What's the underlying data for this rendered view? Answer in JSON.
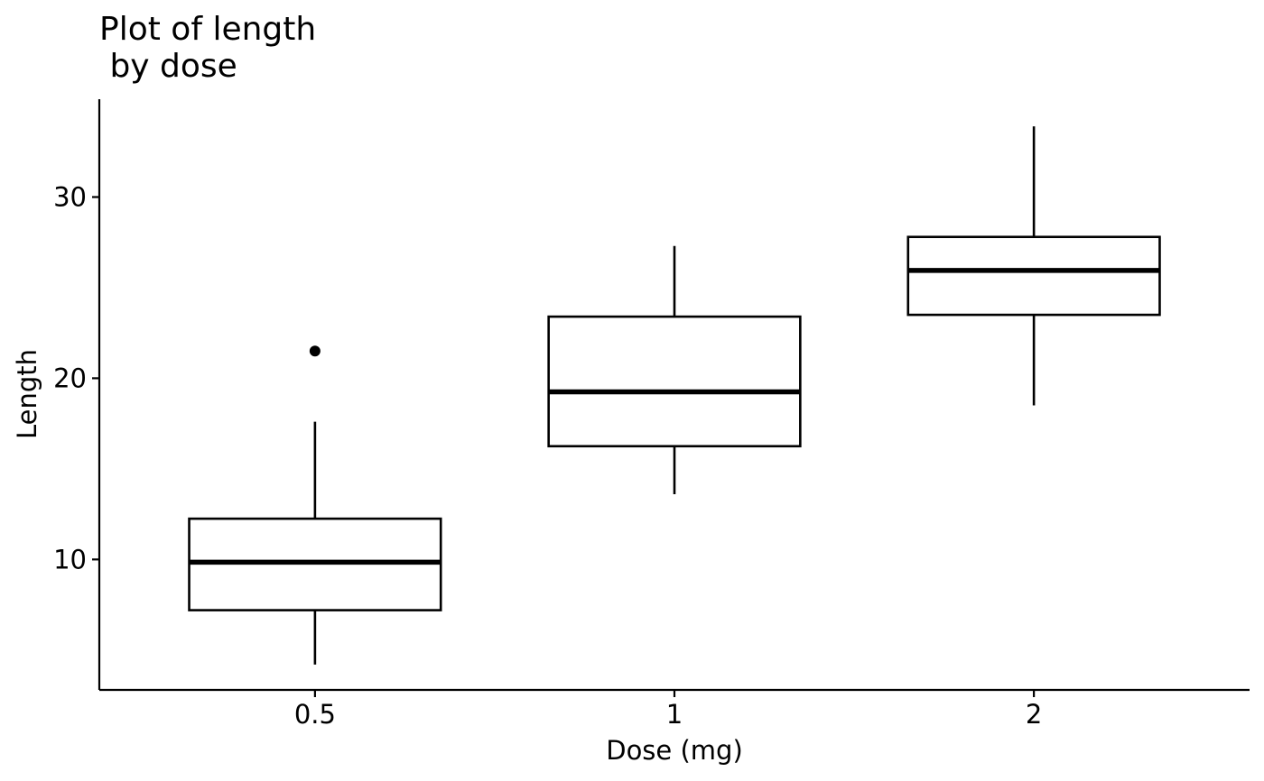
{
  "chart_data": {
    "type": "boxplot",
    "title_lines": [
      "Plot of length",
      " by dose"
    ],
    "xlabel": "Dose (mg)",
    "ylabel": "Length",
    "categories": [
      "0.5",
      "1",
      "2"
    ],
    "yticks": [
      10,
      20,
      30
    ],
    "ytick_labels": [
      "10",
      "20",
      "30"
    ],
    "ylim": [
      2.8,
      35.4
    ],
    "grid": false,
    "boxes": [
      {
        "category": "0.5",
        "whisker_low": 4.2,
        "q1": 7.2,
        "median": 9.85,
        "q3": 12.25,
        "whisker_high": 17.6,
        "outliers": [
          21.5
        ]
      },
      {
        "category": "1",
        "whisker_low": 13.6,
        "q1": 16.25,
        "median": 19.25,
        "q3": 23.4,
        "whisker_high": 27.3,
        "outliers": []
      },
      {
        "category": "2",
        "whisker_low": 18.5,
        "q1": 23.5,
        "median": 25.95,
        "q3": 27.8,
        "whisker_high": 33.9,
        "outliers": []
      }
    ]
  }
}
